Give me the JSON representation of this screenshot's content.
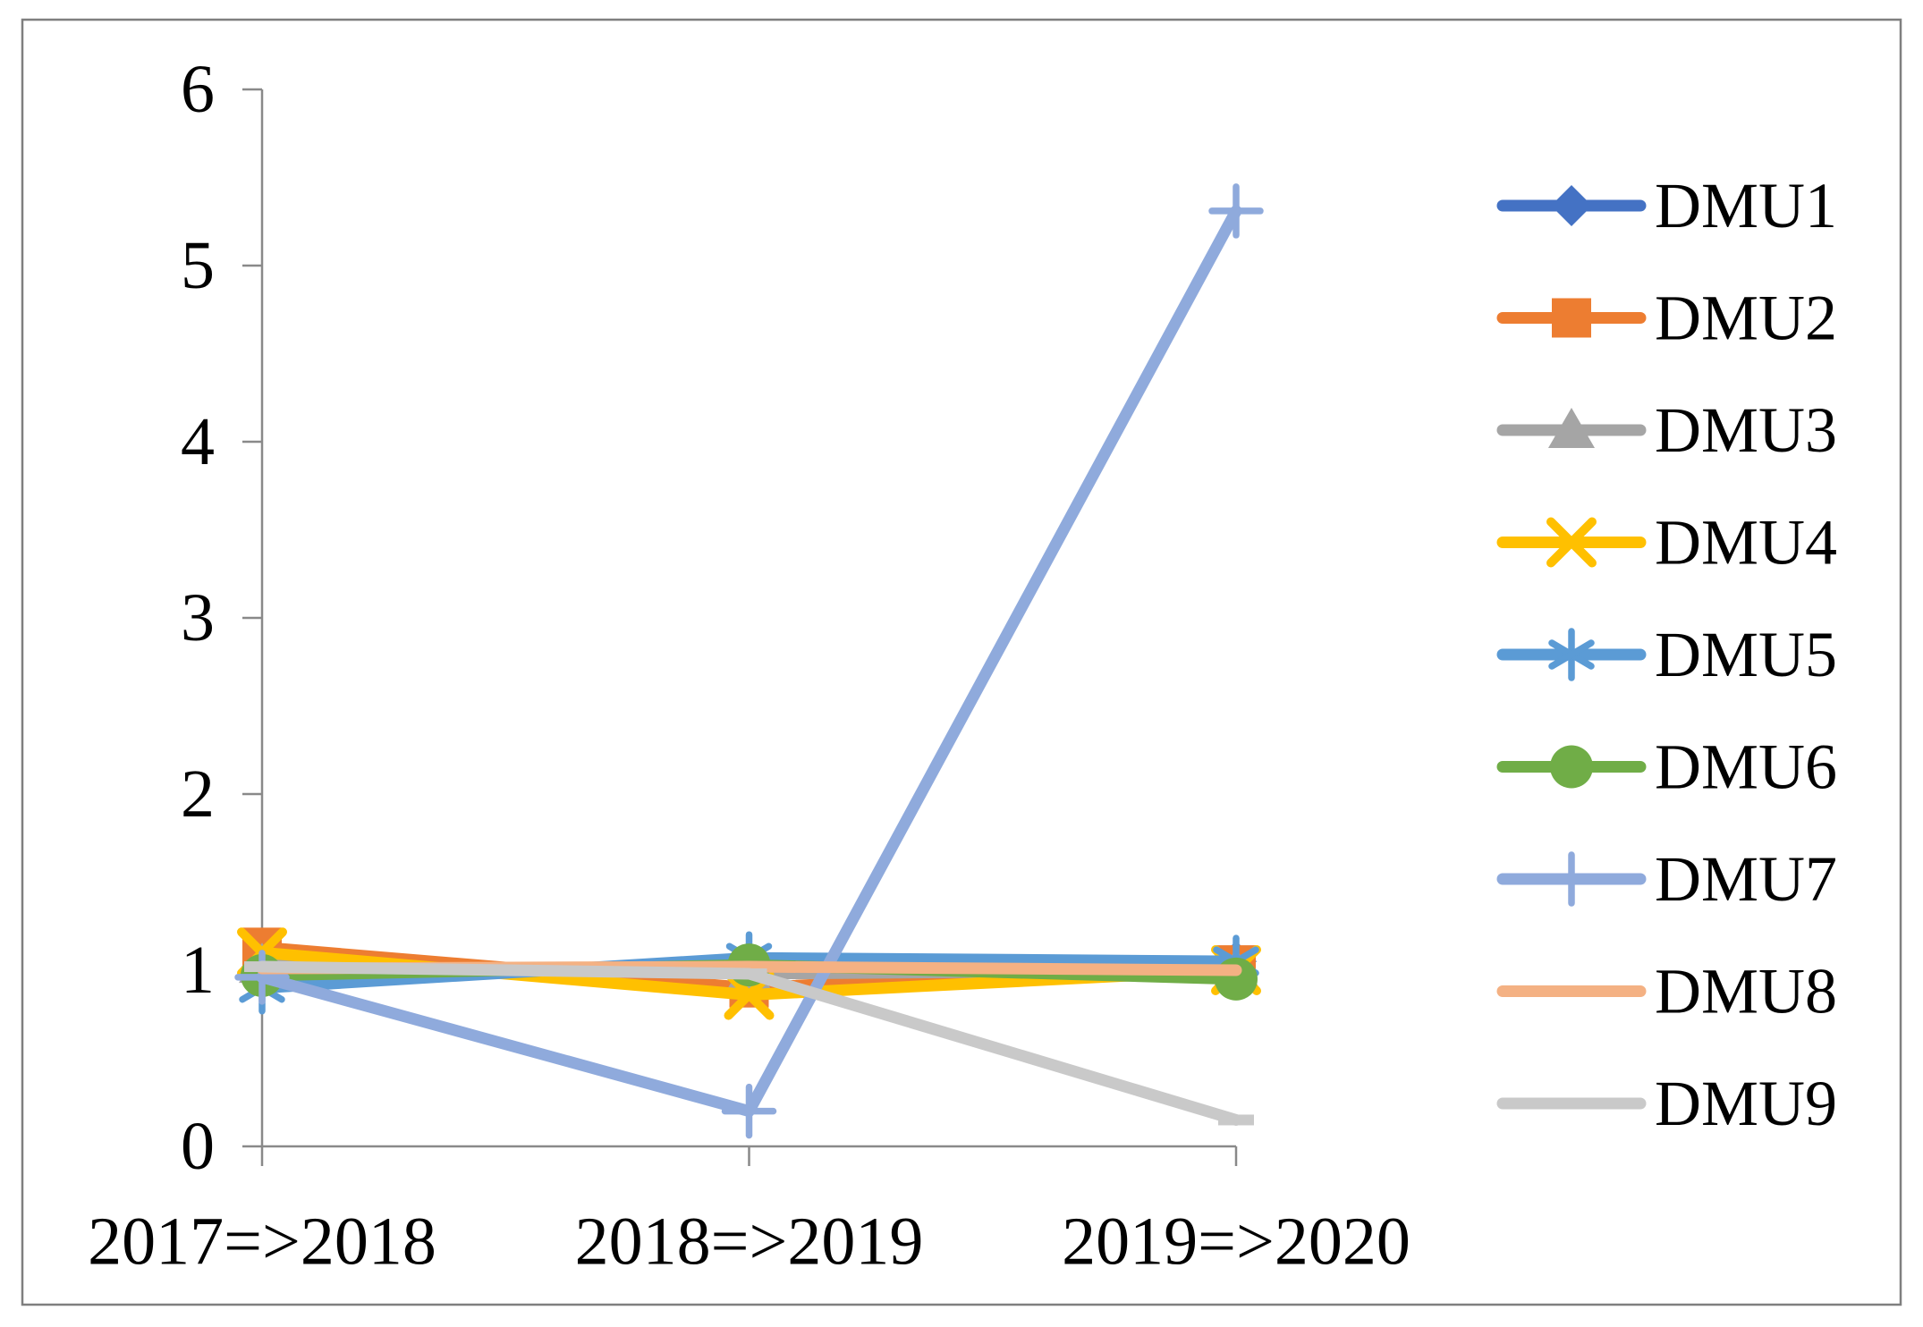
{
  "figure": {
    "background_color": "#FFFFFF",
    "border_color": "#7F7F7F"
  },
  "chart_data": {
    "type": "line",
    "title": "",
    "xlabel": "",
    "ylabel": "",
    "grid": false,
    "legend_position": "right",
    "categories": [
      "2017=>2018",
      "2018=>2019",
      "2019=>2020"
    ],
    "ylim": [
      0,
      6
    ],
    "y_ticks": [
      0,
      1,
      2,
      3,
      4,
      5,
      6
    ],
    "y_tick_labels": [
      "0",
      "1",
      "2",
      "3",
      "4",
      "5",
      "6"
    ],
    "axis_color": "#898989",
    "series": [
      {
        "name": "DMU1",
        "color": "#4472C4",
        "marker": "diamond",
        "values": [
          1.02,
          1.0,
          1.05
        ]
      },
      {
        "name": "DMU2",
        "color": "#ED7D31",
        "marker": "square",
        "values": [
          1.13,
          0.9,
          1.03
        ]
      },
      {
        "name": "DMU3",
        "color": "#A5A5A5",
        "marker": "triangle",
        "values": [
          1.03,
          0.98,
          1.0
        ]
      },
      {
        "name": "DMU4",
        "color": "#FFC000",
        "marker": "x",
        "values": [
          1.1,
          0.86,
          1.0
        ]
      },
      {
        "name": "DMU5",
        "color": "#5B9BD5",
        "marker": "asterisk",
        "values": [
          0.9,
          1.07,
          1.05
        ]
      },
      {
        "name": "DMU6",
        "color": "#70AD47",
        "marker": "circle",
        "values": [
          0.97,
          1.03,
          0.95
        ]
      },
      {
        "name": "DMU7",
        "color": "#8FAADC",
        "marker": "plus",
        "values": [
          0.96,
          0.2,
          5.31
        ]
      },
      {
        "name": "DMU8",
        "color": "#F4B183",
        "marker": "none",
        "values": [
          1.01,
          1.02,
          1.0
        ]
      },
      {
        "name": "DMU9",
        "color": "#C9C9C9",
        "marker": "dash",
        "values": [
          1.02,
          0.98,
          0.15
        ]
      }
    ]
  }
}
